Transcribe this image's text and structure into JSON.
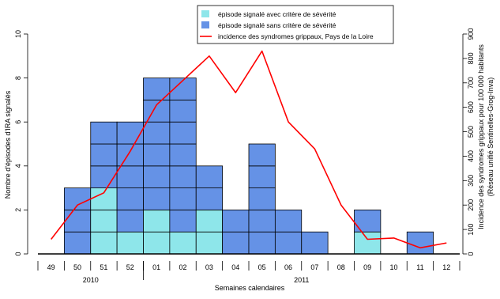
{
  "chart_data": {
    "type": "bar",
    "subtype": "stacked-cells-with-line",
    "categories": [
      "49",
      "50",
      "51",
      "52",
      "01",
      "02",
      "03",
      "04",
      "05",
      "06",
      "07",
      "08",
      "09",
      "10",
      "11",
      "12"
    ],
    "year_groups": [
      {
        "label": "2010",
        "from": "49",
        "to": "52"
      },
      {
        "label": "2011",
        "from": "01",
        "to": "12"
      }
    ],
    "series": [
      {
        "name": "épisode signalé avec critère de sévérité",
        "color": "#8ee6ea",
        "axis": "left",
        "values": [
          0,
          0,
          3,
          1,
          2,
          1,
          2,
          0,
          0,
          0,
          0,
          0,
          1,
          0,
          0,
          0
        ]
      },
      {
        "name": "épisode signalé sans critère de sévérité",
        "color": "#6592e6",
        "axis": "left",
        "values": [
          0,
          3,
          3,
          5,
          6,
          7,
          2,
          2,
          5,
          2,
          1,
          0,
          1,
          0,
          1,
          0
        ]
      },
      {
        "name": "incidence des syndromes grippaux, Pays de la Loire",
        "color": "#ff0000",
        "axis": "right",
        "kind": "line",
        "values": [
          60,
          200,
          250,
          420,
          610,
          710,
          810,
          660,
          830,
          540,
          430,
          200,
          60,
          65,
          25,
          45
        ]
      }
    ],
    "xlabel": "Semaines calendaires",
    "ylabel": "Nombre d'épisodes d'IRA signalés",
    "ylim": [
      0,
      10
    ],
    "yticks": [
      0,
      2,
      4,
      6,
      8,
      10
    ],
    "y2label": "Incidence des syndromes grippaux pour 100 000 habitants",
    "y2label_sub": "(Réseau unifié Sentinelles-Grog-Inva)",
    "y2lim": [
      0,
      900
    ],
    "y2ticks": [
      0,
      100,
      200,
      300,
      400,
      500,
      600,
      700,
      800,
      900
    ],
    "legend_position": "top-right",
    "grid": false
  }
}
